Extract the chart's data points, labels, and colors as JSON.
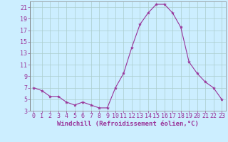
{
  "xlabel": "Windchill (Refroidissement éolien,°C)",
  "x_values": [
    0,
    1,
    2,
    3,
    4,
    5,
    6,
    7,
    8,
    9,
    10,
    11,
    12,
    13,
    14,
    15,
    16,
    17,
    18,
    19,
    20,
    21,
    22,
    23
  ],
  "y_values": [
    7,
    6.5,
    5.5,
    5.5,
    4.5,
    4,
    4.5,
    4,
    3.5,
    3.5,
    7,
    9.5,
    14,
    18,
    20,
    21.5,
    21.5,
    20,
    17.5,
    11.5,
    9.5,
    8,
    7,
    5
  ],
  "line_color": "#993399",
  "marker": "*",
  "marker_size": 3,
  "bg_color": "#cceeff",
  "grid_color": "#aacccc",
  "ylim": [
    3,
    22
  ],
  "xlim": [
    -0.5,
    23.5
  ],
  "yticks": [
    3,
    5,
    7,
    9,
    11,
    13,
    15,
    17,
    19,
    21
  ],
  "xticks": [
    0,
    1,
    2,
    3,
    4,
    5,
    6,
    7,
    8,
    9,
    10,
    11,
    12,
    13,
    14,
    15,
    16,
    17,
    18,
    19,
    20,
    21,
    22,
    23
  ],
  "tick_color": "#993399",
  "label_color": "#993399",
  "label_fontsize": 6.5,
  "tick_fontsize": 6.0
}
